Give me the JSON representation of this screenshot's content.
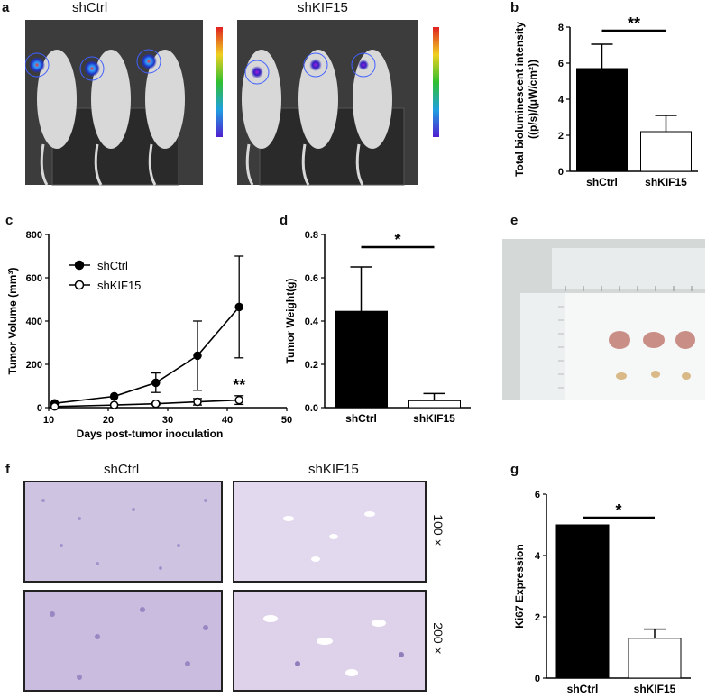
{
  "panels": {
    "a": {
      "letter": "a",
      "labels": [
        "shCtrl",
        "shKIF15"
      ]
    },
    "b": {
      "letter": "b"
    },
    "c": {
      "letter": "c"
    },
    "d": {
      "letter": "d"
    },
    "e": {
      "letter": "e"
    },
    "f": {
      "letter": "f",
      "column_labels": [
        "shCtrl",
        "shKIF15"
      ],
      "row_labels": [
        "100 ×",
        "200 ×"
      ]
    },
    "g": {
      "letter": "g"
    }
  },
  "colors": {
    "ctrl_fill": "#000000",
    "kif_fill": "#ffffff",
    "stain_bg": "#d6cde6",
    "stain_dark": "#6f5aa6"
  },
  "chart_data": [
    {
      "id": "b",
      "type": "bar",
      "categories": [
        "shCtrl",
        "shKIF15"
      ],
      "values": [
        5.7,
        2.2
      ],
      "errors": [
        1.35,
        0.9
      ],
      "ylabel_lines": [
        "Total bioluminescent intensity",
        "((p/s)/(μW/cm²))"
      ],
      "ylim": [
        0,
        8
      ],
      "yticks": [
        "0",
        "2",
        "4",
        "6",
        "8"
      ],
      "significance": "**"
    },
    {
      "id": "c",
      "type": "line",
      "xlabel": "Days post-tumor inoculation",
      "ylabel": "Tumor Volume (mm³)",
      "xlim": [
        10,
        50
      ],
      "ylim": [
        0,
        800
      ],
      "xticks": [
        "10",
        "20",
        "30",
        "40",
        "50"
      ],
      "yticks": [
        "0",
        "200",
        "400",
        "600",
        "800"
      ],
      "legend_position": "top-left",
      "series": [
        {
          "name": "shCtrl",
          "marker": "filled-circle",
          "x": [
            11,
            21,
            28,
            35,
            42
          ],
          "y": [
            20,
            52,
            115,
            240,
            465
          ],
          "errors": [
            0,
            0,
            45,
            160,
            235
          ]
        },
        {
          "name": "shKIF15",
          "marker": "open-circle",
          "x": [
            11,
            21,
            28,
            35,
            42
          ],
          "y": [
            5,
            12,
            18,
            27,
            35
          ],
          "errors": [
            0,
            0,
            5,
            15,
            20
          ]
        }
      ],
      "significance": "**"
    },
    {
      "id": "d",
      "type": "bar",
      "categories": [
        "shCtrl",
        "shKIF15"
      ],
      "values": [
        0.445,
        0.032
      ],
      "errors": [
        0.205,
        0.033
      ],
      "ylabel": "Tumor Weight(g)",
      "ylim": [
        0,
        0.8
      ],
      "yticks": [
        "0.0",
        "0.2",
        "0.4",
        "0.6",
        "0.8"
      ],
      "significance": "*"
    },
    {
      "id": "g",
      "type": "bar",
      "categories": [
        "shCtrl",
        "shKIF15"
      ],
      "values": [
        5.0,
        1.3
      ],
      "errors": [
        0,
        0.3
      ],
      "ylabel": "Ki67 Expression",
      "ylim": [
        0,
        6
      ],
      "yticks": [
        "0",
        "2",
        "4",
        "6"
      ],
      "significance": "*"
    }
  ]
}
